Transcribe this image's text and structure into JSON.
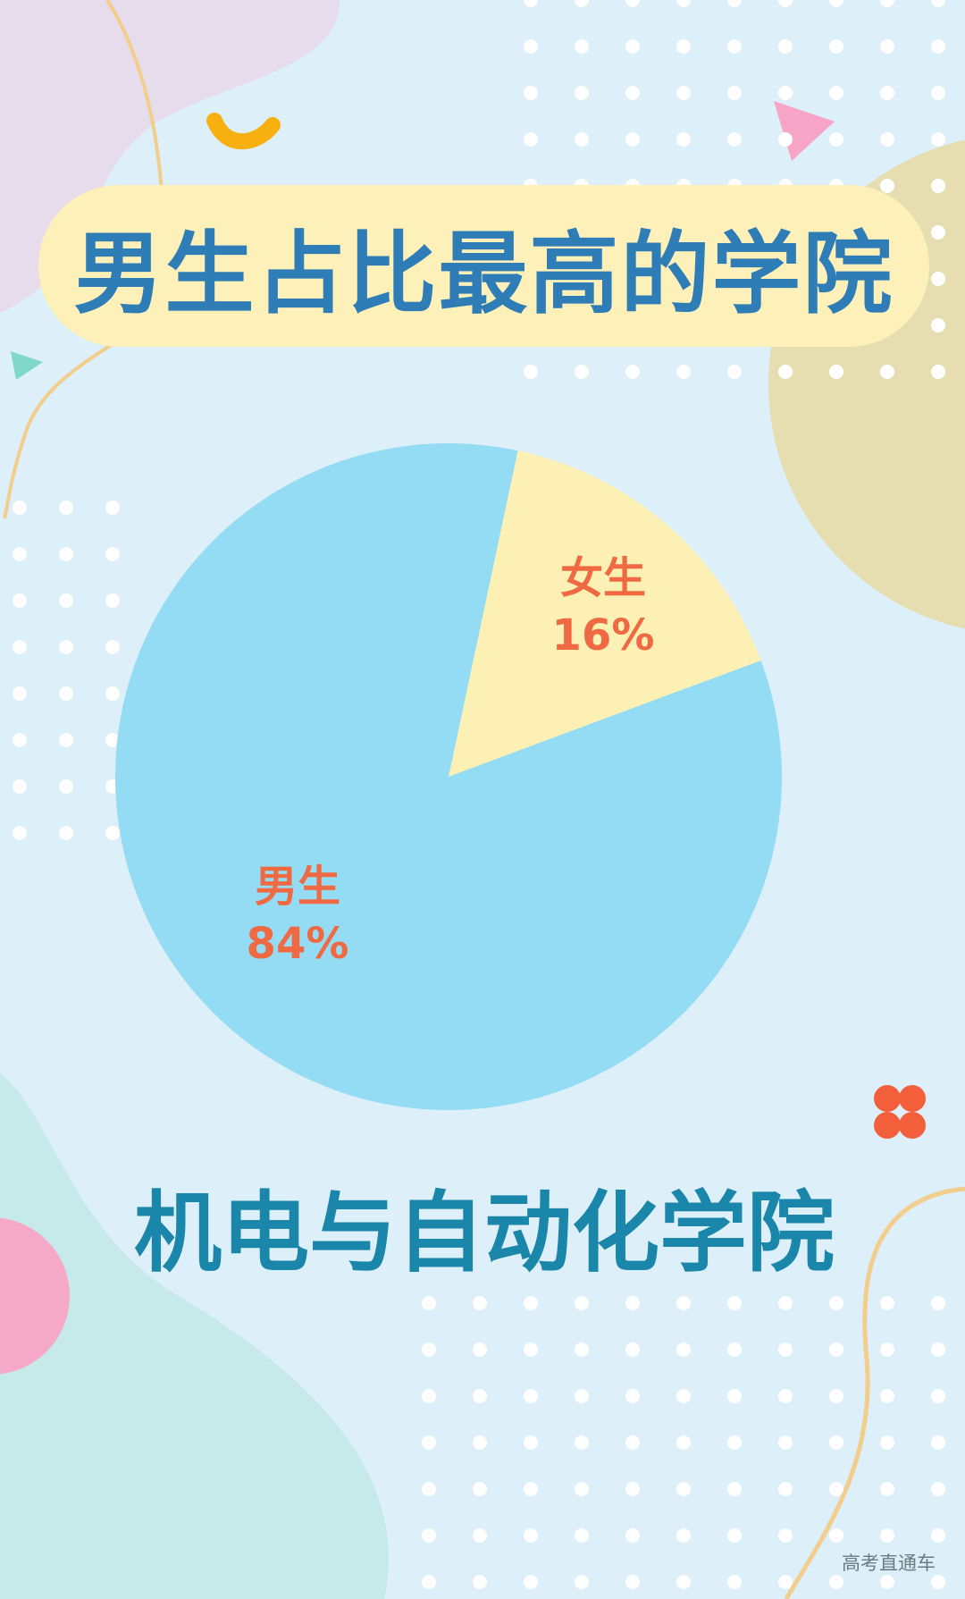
{
  "title": "男生占比最高的学院",
  "subtitle": "机电与自动化学院",
  "watermark": "高考直通车",
  "colors": {
    "male": "#94dcf4",
    "female": "#fcf0b4",
    "label": "#ef6a43",
    "title": "#2e7db6",
    "subtitle": "#1a86aa"
  },
  "chart_data": {
    "type": "pie",
    "slices": [
      {
        "name": "女生",
        "value": 16,
        "label": "16%"
      },
      {
        "name": "男生",
        "value": 84,
        "label": "84%"
      }
    ]
  }
}
